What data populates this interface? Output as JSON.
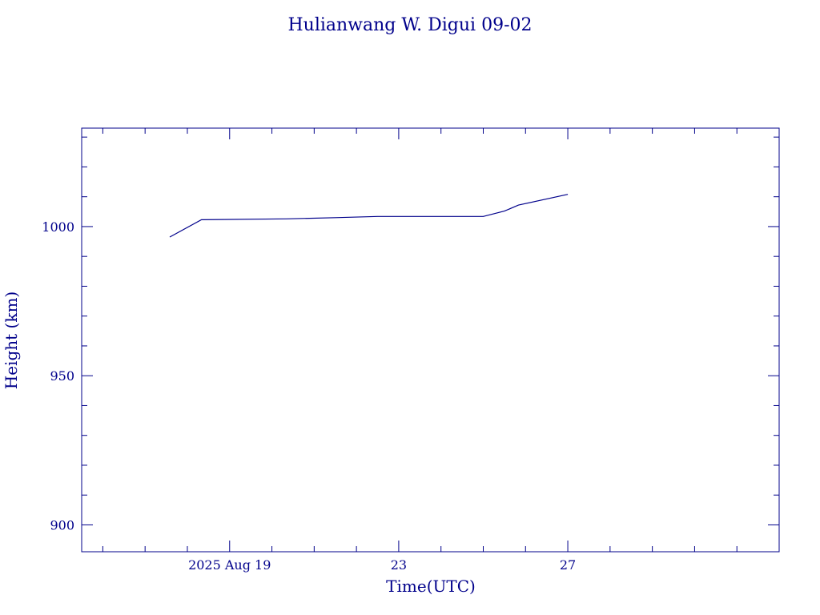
{
  "chart_data": {
    "type": "line",
    "title": "Hulianwang W. Digui 09-02",
    "xlabel": "Time(UTC)",
    "ylabel": "Height (km)",
    "x_unit": "days",
    "xlim": [
      "2025-08-15T12:00",
      "2025-09-01T00:00"
    ],
    "ylim": [
      891,
      1033
    ],
    "x_tick_labels": [
      {
        "x": "2025-08-19T00:00",
        "label": "2025 Aug 19"
      },
      {
        "x": "2025-08-23T00:00",
        "label": "23"
      },
      {
        "x": "2025-08-27T00:00",
        "label": "27"
      }
    ],
    "x_minor_ticks": [
      "2025-08-16T00:00",
      "2025-08-17T00:00",
      "2025-08-18T00:00",
      "2025-08-19T00:00",
      "2025-08-20T00:00",
      "2025-08-21T00:00",
      "2025-08-22T00:00",
      "2025-08-23T00:00",
      "2025-08-24T00:00",
      "2025-08-25T00:00",
      "2025-08-26T00:00",
      "2025-08-27T00:00",
      "2025-08-28T00:00",
      "2025-08-29T00:00",
      "2025-08-30T00:00",
      "2025-08-31T00:00"
    ],
    "x_major_ticks": [
      "2025-08-19T00:00",
      "2025-08-23T00:00",
      "2025-08-27T00:00"
    ],
    "y_tick_labels": [
      {
        "y": 900,
        "label": "900"
      },
      {
        "y": 950,
        "label": "950"
      },
      {
        "y": 1000,
        "label": "1000"
      }
    ],
    "y_minor_ticks": [
      900,
      910,
      920,
      930,
      940,
      950,
      960,
      970,
      980,
      990,
      1000,
      1010,
      1020,
      1030
    ],
    "y_major_ticks": [
      900,
      950,
      1000
    ],
    "series": [
      {
        "name": "",
        "color": "#00008b",
        "points": [
          {
            "x": "2025-08-17T14:00",
            "y": 996.5
          },
          {
            "x": "2025-08-18T08:00",
            "y": 1002.3
          },
          {
            "x": "2025-08-20T08:00",
            "y": 1002.6
          },
          {
            "x": "2025-08-21T12:00",
            "y": 1003.0
          },
          {
            "x": "2025-08-22T12:00",
            "y": 1003.4
          },
          {
            "x": "2025-08-24T12:00",
            "y": 1003.4
          },
          {
            "x": "2025-08-25T00:00",
            "y": 1003.4
          },
          {
            "x": "2025-08-25T12:00",
            "y": 1005.2
          },
          {
            "x": "2025-08-25T20:00",
            "y": 1007.2
          },
          {
            "x": "2025-08-27T00:00",
            "y": 1010.8
          }
        ]
      }
    ]
  }
}
